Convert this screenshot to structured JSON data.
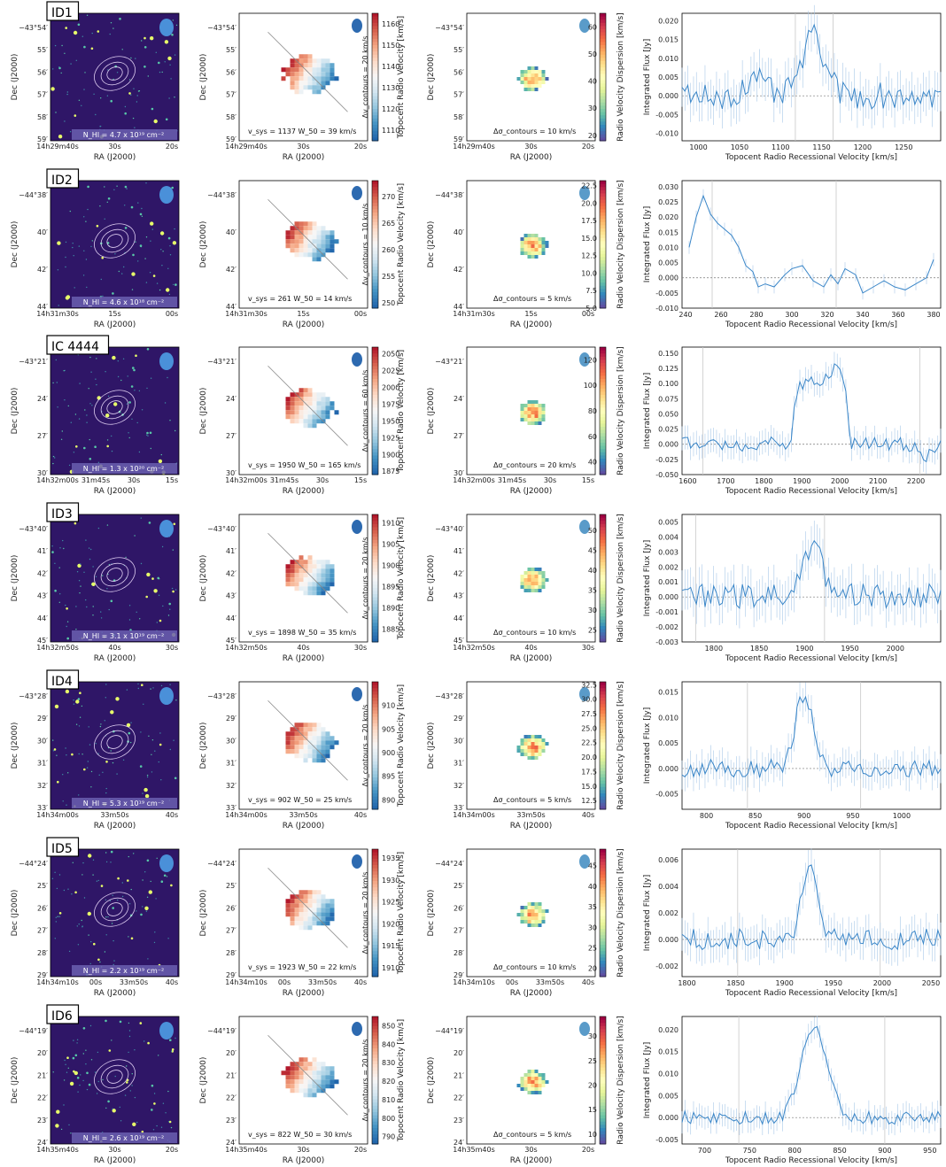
{
  "figure_labels": {
    "dec_label": "Dec (J2000)",
    "ra_label": "RA (J2000)",
    "vel_bar_label": "Topocent Radio Velocity [km/s]",
    "disp_bar_label": "Radio Velocity Dispersion [km/s]",
    "spec_ylabel": "Integrated Flux [Jy]",
    "spec_xlabel": "Topocent Radio Recessional Velocity [km/s]",
    "dv_label": "Δv_contours",
    "dsig_label": "Δσ_contours",
    "vsys_label": "v_sys",
    "w50_label": "W_50",
    "nhi_label": "N_HI"
  },
  "chart_data": [
    {
      "id": "ID1",
      "type": "panel-row",
      "dec_ticks": [
        "−43°54′",
        "55′",
        "56′",
        "57′",
        "58′",
        "59′"
      ],
      "ra_ticks": [
        "14h29m40s",
        "30s",
        "20s"
      ],
      "nhi": "4.7 x 10¹⁹ cm⁻²",
      "dv_contours": "= 20 km/s",
      "vel_cbar": {
        "ticks": [
          1110,
          1120,
          1130,
          1140,
          1150,
          1160
        ],
        "range": [
          1105,
          1165
        ]
      },
      "vsys": "1137",
      "w50": "39",
      "vunit": "km/s",
      "disp_cbar": {
        "ticks": [
          20,
          30,
          40,
          50,
          60
        ],
        "range": [
          18,
          65
        ]
      },
      "dsig_contours": "= 10 km/s",
      "spectrum": {
        "type": "line",
        "xlim": [
          980,
          1295
        ],
        "ylim": [
          -0.012,
          0.022
        ],
        "xticks": [
          1000,
          1050,
          1100,
          1150,
          1200,
          1250
        ],
        "yticks": [
          "-0.010",
          "-0.005",
          "0.000",
          "0.005",
          "0.010",
          "0.015",
          "0.020"
        ],
        "vlines": [
          1118,
          1164
        ],
        "peaks": [
          {
            "c": 1140,
            "w": 14,
            "a": 0.0155
          }
        ],
        "bumps": [
          {
            "c": 1070,
            "w": 12,
            "a": 0.004
          }
        ],
        "noise": 0.0035
      }
    },
    {
      "id": "ID2",
      "type": "panel-row",
      "dec_ticks": [
        "−44°38′",
        "40′",
        "42′",
        "44′"
      ],
      "ra_ticks": [
        "14h31m30s",
        "15s",
        "00s"
      ],
      "nhi": "4.6 x 10¹⁸ cm⁻²",
      "dv_contours": "= 10 km/s",
      "vel_cbar": {
        "ticks": [
          250,
          255,
          260,
          265,
          270
        ],
        "range": [
          249,
          273
        ]
      },
      "vsys": "261",
      "w50": "14",
      "vunit": "km/s",
      "disp_cbar": {
        "ticks": [
          "5.0",
          "7.5",
          "10.0",
          "12.5",
          "15.0",
          "17.5",
          "20.0",
          "22.5"
        ],
        "range": [
          5,
          23.2
        ]
      },
      "dsig_contours": "= 5 km/s",
      "spectrum": {
        "type": "line",
        "xlim": [
          238,
          384
        ],
        "ylim": [
          -0.01,
          0.032
        ],
        "xticks": [
          240,
          260,
          280,
          300,
          320,
          340,
          360,
          380
        ],
        "yticks": [
          "-0.010",
          "-0.005",
          "0.000",
          "0.005",
          "0.010",
          "0.015",
          "0.020",
          "0.025",
          "0.030"
        ],
        "vlines": [
          255,
          325
        ],
        "points": [
          [
            242,
            0.01
          ],
          [
            246,
            0.02
          ],
          [
            250,
            0.027
          ],
          [
            254,
            0.021
          ],
          [
            258,
            0.018
          ],
          [
            262,
            0.016
          ],
          [
            266,
            0.014
          ],
          [
            270,
            0.01
          ],
          [
            274,
            0.004
          ],
          [
            278,
            0.002
          ],
          [
            281,
            -0.003
          ],
          [
            285,
            -0.002
          ],
          [
            290,
            -0.003
          ],
          [
            296,
            0.001
          ],
          [
            300,
            0.003
          ],
          [
            306,
            0.004
          ],
          [
            312,
            -0.001
          ],
          [
            318,
            -0.003
          ],
          [
            322,
            0.001
          ],
          [
            326,
            -0.002
          ],
          [
            330,
            0.003
          ],
          [
            336,
            0.001
          ],
          [
            340,
            -0.005
          ],
          [
            346,
            -0.003
          ],
          [
            352,
            -0.001
          ],
          [
            358,
            -0.003
          ],
          [
            364,
            -0.004
          ],
          [
            370,
            -0.002
          ],
          [
            376,
            0.0
          ],
          [
            380,
            0.006
          ]
        ]
      }
    },
    {
      "id": "IC 4444",
      "type": "panel-row",
      "dec_ticks": [
        "−43°21′",
        "24′",
        "27′",
        "30′"
      ],
      "ra_ticks": [
        "14h32m00s",
        "31m45s",
        "30s",
        "15s"
      ],
      "nhi": "1.3 x 10²⁰ cm⁻²",
      "dv_contours": "= 60 km/s",
      "vel_cbar": {
        "ticks": [
          1875,
          1900,
          1925,
          1950,
          1975,
          2000,
          2025,
          2050
        ],
        "range": [
          1870,
          2060
        ]
      },
      "vsys": "1950",
      "w50": "165",
      "vunit": "km/s",
      "disp_cbar": {
        "ticks": [
          40,
          60,
          80,
          100,
          120
        ],
        "range": [
          30,
          130
        ]
      },
      "dsig_contours": "= 20 km/s",
      "spectrum": {
        "type": "line",
        "xlim": [
          1585,
          2265
        ],
        "ylim": [
          -0.05,
          0.16
        ],
        "xticks": [
          1600,
          1700,
          1800,
          1900,
          2000,
          2100,
          2200
        ],
        "yticks": [
          "-0.050",
          "-0.025",
          "0.000",
          "0.025",
          "0.050",
          "0.075",
          "0.100",
          "0.125",
          "0.150"
        ],
        "vlines": [
          1640,
          2210
        ],
        "plateau": [
          1870,
          2030,
          0.1
        ],
        "horns": [
          {
            "c": 1990,
            "w": 15,
            "a": 0.03
          }
        ],
        "dip": {
          "c": 2220,
          "w": 15,
          "a": -0.02
        },
        "noise": 0.012
      }
    },
    {
      "id": "ID3",
      "type": "panel-row",
      "dec_ticks": [
        "−43°40′",
        "41′",
        "42′",
        "43′",
        "44′",
        "45′"
      ],
      "ra_ticks": [
        "14h32m50s",
        "40s",
        "30s"
      ],
      "nhi": "3.1 x 10¹⁹ cm⁻²",
      "dv_contours": "= 20 km/s",
      "vel_cbar": {
        "ticks": [
          1885,
          1890,
          1895,
          1900,
          1905,
          1910
        ],
        "range": [
          1882,
          1912
        ]
      },
      "vsys": "1898",
      "w50": "35",
      "vunit": "km/s",
      "disp_cbar": {
        "ticks": [
          25,
          30,
          35,
          40,
          45,
          50
        ],
        "range": [
          22,
          54
        ]
      },
      "dsig_contours": "= 10 km/s",
      "spectrum": {
        "type": "line",
        "xlim": [
          1765,
          2050
        ],
        "ylim": [
          -0.003,
          0.0055
        ],
        "xticks": [
          1800,
          1850,
          1900,
          1950,
          2000
        ],
        "yticks": [
          "-0.003",
          "-0.002",
          "-0.001",
          "0.000",
          "0.001",
          "0.002",
          "0.003",
          "0.004",
          "0.005"
        ],
        "vlines": [
          1780,
          1922
        ],
        "peaks": [
          {
            "c": 1908,
            "w": 10,
            "a": 0.0036
          }
        ],
        "noise": 0.0009
      }
    },
    {
      "id": "ID4",
      "type": "panel-row",
      "dec_ticks": [
        "−43°28′",
        "29′",
        "30′",
        "31′",
        "32′",
        "33′"
      ],
      "ra_ticks": [
        "14h34m00s",
        "33m50s",
        "40s"
      ],
      "nhi": "5.3 x 10¹⁹ cm⁻²",
      "dv_contours": "= 20 km/s",
      "vel_cbar": {
        "ticks": [
          890,
          895,
          900,
          905,
          910
        ],
        "range": [
          888,
          915
        ]
      },
      "vsys": "902",
      "w50": "25",
      "vunit": "km/s",
      "disp_cbar": {
        "ticks": [
          "12.5",
          "15.0",
          "17.5",
          "20.0",
          "22.5",
          "25.0",
          "27.5",
          "30.0",
          "32.5"
        ],
        "range": [
          11,
          33
        ]
      },
      "dsig_contours": "= 5 km/s",
      "spectrum": {
        "type": "line",
        "xlim": [
          775,
          1040
        ],
        "ylim": [
          -0.008,
          0.017
        ],
        "xticks": [
          800,
          850,
          900,
          950,
          1000
        ],
        "yticks": [
          "-0.005",
          "0.000",
          "0.005",
          "0.010",
          "0.015"
        ],
        "vlines": [
          842,
          958
        ],
        "peaks": [
          {
            "c": 900,
            "w": 9,
            "a": 0.0145
          }
        ],
        "noise": 0.0018
      }
    },
    {
      "id": "ID5",
      "type": "panel-row",
      "dec_ticks": [
        "−44°24′",
        "25′",
        "26′",
        "27′",
        "28′",
        "29′"
      ],
      "ra_ticks": [
        "14h34m10s",
        "00s",
        "33m50s",
        "40s"
      ],
      "nhi": "2.2 x 10¹⁹ cm⁻²",
      "dv_contours": "= 20 km/s",
      "vel_cbar": {
        "ticks": [
          1910,
          1915,
          1920,
          1925,
          1930,
          1935
        ],
        "range": [
          1908,
          1937
        ]
      },
      "vsys": "1923",
      "w50": "22",
      "vunit": "km/s",
      "disp_cbar": {
        "ticks": [
          20,
          25,
          30,
          35,
          40,
          45
        ],
        "range": [
          18,
          49
        ]
      },
      "dsig_contours": "= 10 km/s",
      "spectrum": {
        "type": "line",
        "xlim": [
          1795,
          2060
        ],
        "ylim": [
          -0.0028,
          0.0068
        ],
        "xticks": [
          1800,
          1850,
          1900,
          1950,
          2000,
          2050
        ],
        "yticks": [
          "-0.002",
          "0.000",
          "0.002",
          "0.004",
          "0.006"
        ],
        "vlines": [
          1852,
          1998
        ],
        "peaks": [
          {
            "c": 1925,
            "w": 7,
            "a": 0.006
          }
        ],
        "noise": 0.0008
      }
    },
    {
      "id": "ID6",
      "type": "panel-row",
      "dec_ticks": [
        "−44°19′",
        "20′",
        "21′",
        "22′",
        "23′",
        "24′"
      ],
      "ra_ticks": [
        "14h35m40s",
        "30s",
        "20s"
      ],
      "nhi": "2.6 x 10¹⁹ cm⁻²",
      "dv_contours": "= 20 km/s",
      "vel_cbar": {
        "ticks": [
          790,
          800,
          810,
          820,
          830,
          840,
          850
        ],
        "range": [
          786,
          855
        ]
      },
      "vsys": "822",
      "w50": "30",
      "vunit": "km/s",
      "disp_cbar": {
        "ticks": [
          10,
          15,
          20,
          25,
          30
        ],
        "range": [
          8,
          34
        ]
      },
      "dsig_contours": "= 5 km/s",
      "spectrum": {
        "type": "line",
        "xlim": [
          675,
          962
        ],
        "ylim": [
          -0.006,
          0.023
        ],
        "xticks": [
          700,
          750,
          800,
          850,
          900,
          950
        ],
        "yticks": [
          "-0.005",
          "0.000",
          "0.005",
          "0.010",
          "0.015",
          "0.020"
        ],
        "vlines": [
          738,
          900
        ],
        "peaks": [
          {
            "c": 822,
            "w": 14,
            "a": 0.021
          }
        ],
        "noise": 0.0015
      }
    }
  ]
}
